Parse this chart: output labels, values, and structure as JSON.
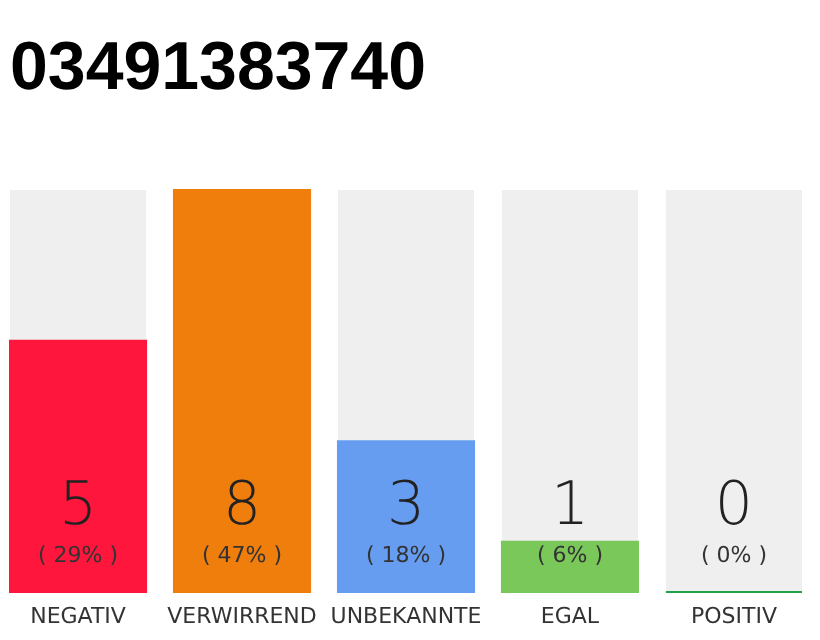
{
  "chart_data": {
    "type": "bar",
    "title": "03491383740",
    "categories": [
      "NEGATIV",
      "VERWIRREND",
      "UNBEKANNTE",
      "EGAL",
      "POSITIV"
    ],
    "values": [
      5,
      8,
      3,
      1,
      0
    ],
    "colors": [
      "#ff163c",
      "#f07e0c",
      "#669df0",
      "#7ac85a",
      "#22a045"
    ],
    "data_labels": true,
    "annotations": [
      "( 29% )",
      "( 47% )",
      "( 18% )",
      "( 6% )",
      "( 0% )"
    ]
  }
}
